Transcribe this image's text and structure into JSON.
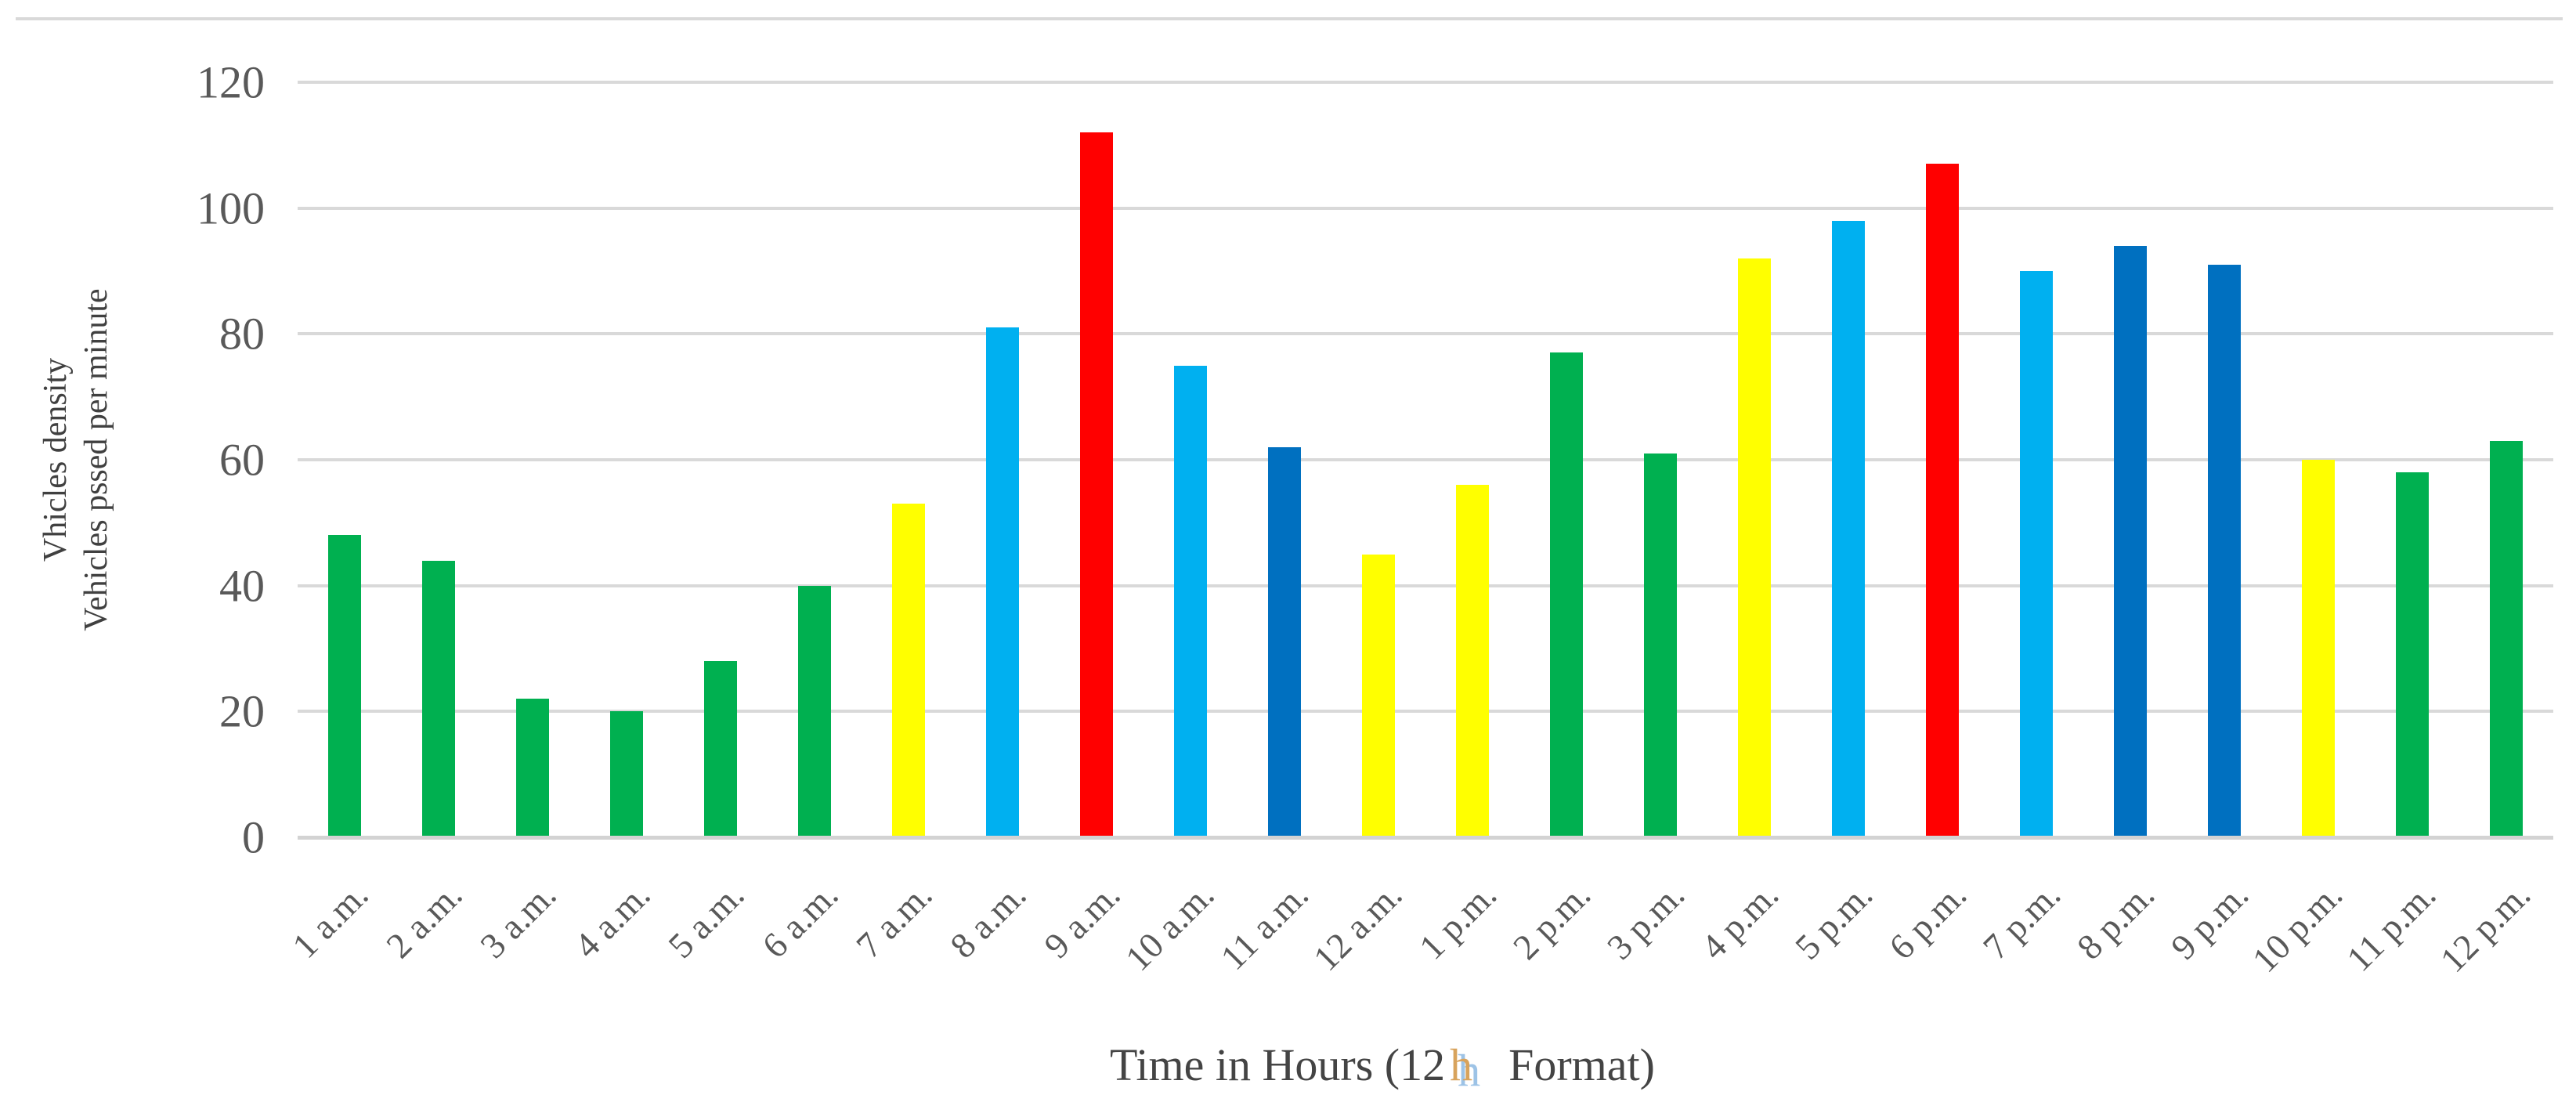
{
  "chart_data": {
    "type": "bar",
    "title": "",
    "xlabel": "Time in Hours (12 h Format)",
    "xlabel_parts": {
      "prefix": "Time in Hours (12",
      "highlight": "h",
      "suffix": "Format)"
    },
    "ylabel_line1": "Vhicles density",
    "ylabel_line2": "Vehicles pssed per minute",
    "ylim": [
      0,
      120
    ],
    "yticks": [
      0,
      20,
      40,
      60,
      80,
      100,
      120
    ],
    "grid": true,
    "legend": false,
    "categories": [
      "1 a.m.",
      "2 a.m.",
      "3 a.m.",
      "4 a.m.",
      "5 a.m.",
      "6 a.m.",
      "7 a.m.",
      "8 a.m.",
      "9 a.m.",
      "10 a.m.",
      "11 a.m.",
      "12 a.m.",
      "1 p.m.",
      "2 p.m.",
      "3 p.m.",
      "4 p.m.",
      "5 p.m.",
      "6 p.m.",
      "7 p.m.",
      "8 p.m.",
      "9 p.m.",
      "10 p.m.",
      "11 p.m.",
      "12 p.m."
    ],
    "values": [
      48,
      44,
      22,
      20,
      28,
      40,
      53,
      81,
      112,
      75,
      62,
      45,
      56,
      77,
      61,
      92,
      98,
      107,
      90,
      94,
      91,
      60,
      58,
      63
    ],
    "colors_by_bar": [
      "green",
      "green",
      "green",
      "green",
      "green",
      "green",
      "yellow",
      "light_blue",
      "red",
      "light_blue",
      "dark_blue",
      "yellow",
      "yellow",
      "green",
      "green",
      "yellow",
      "light_blue",
      "red",
      "light_blue",
      "dark_blue",
      "dark_blue",
      "yellow",
      "green",
      "green"
    ],
    "palette": {
      "green": "#00B050",
      "yellow": "#FFFF00",
      "light_blue": "#00B0F0",
      "red": "#FF0000",
      "dark_blue": "#0070C0"
    }
  },
  "colors": {
    "background": "#FFFFFF",
    "gridline": "#D9D9D9",
    "axis_line": "#D3D3D3",
    "tick_text": "#595959",
    "title_text": "#444444",
    "highlight_tan": "#D8A35C",
    "highlight_blue": "#9DC3E6"
  }
}
